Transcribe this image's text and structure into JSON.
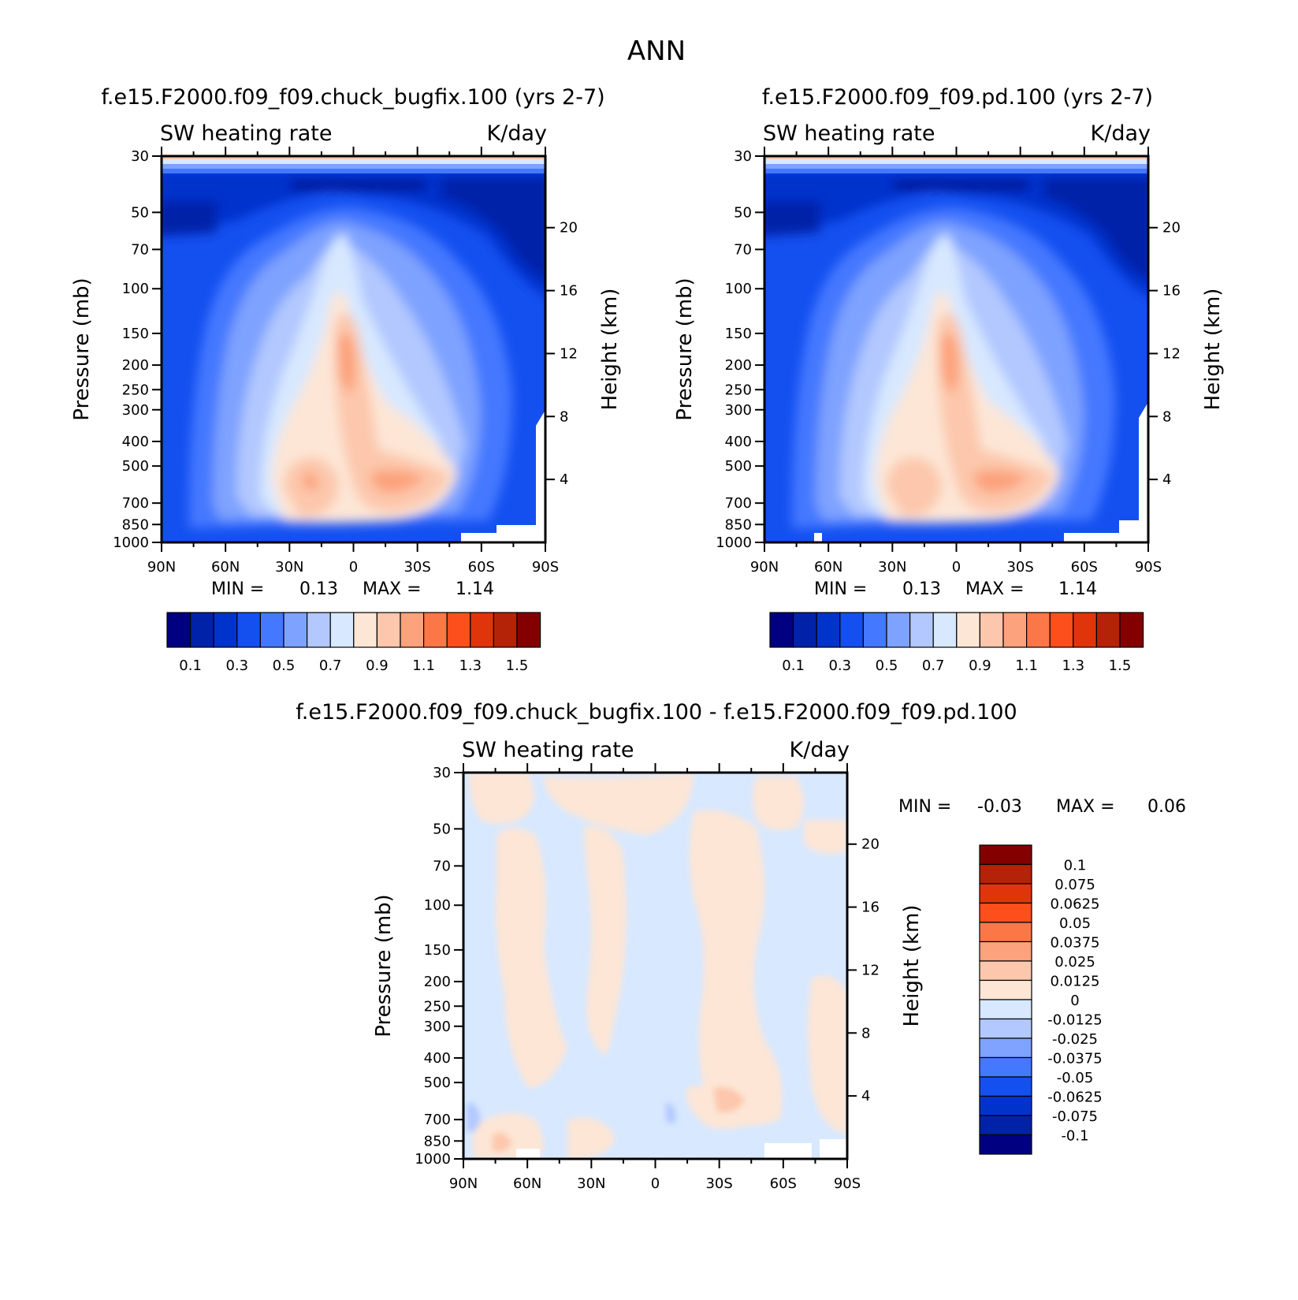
{
  "title": "ANN",
  "chart_data": [
    {
      "type": "heatmap",
      "name": "test",
      "title": "f.e15.F2000.f09_f09.chuck_bugfix.100 (yrs 2-7)",
      "variable": "SW heating rate",
      "units": "K/day",
      "ylabel": "Pressure (mb)",
      "ylabel2": "Height (km)",
      "x_ticks": [
        "90N",
        "60N",
        "30N",
        "0",
        "30S",
        "60S",
        "90S"
      ],
      "y_ticks": [
        "30",
        "50",
        "70",
        "100",
        "150",
        "200",
        "250",
        "300",
        "400",
        "500",
        "700",
        "850",
        "1000"
      ],
      "y2_ticks": [
        "20",
        "16",
        "12",
        "8",
        "4"
      ],
      "min_label": "MIN =",
      "min": "0.13",
      "max_label": "MAX =",
      "max": "1.14",
      "colorbar_levels": [
        0.1,
        0.2,
        0.3,
        0.4,
        0.5,
        0.6,
        0.7,
        0.8,
        0.9,
        1.0,
        1.1,
        1.2,
        1.3,
        1.4,
        1.5
      ],
      "colorbar_labels": [
        "0.1",
        "0.3",
        "0.5",
        "0.7",
        "0.9",
        "1.1",
        "1.3",
        "1.5"
      ]
    },
    {
      "type": "heatmap",
      "name": "control",
      "title": "f.e15.F2000.f09_f09.pd.100 (yrs 2-7)",
      "variable": "SW heating rate",
      "units": "K/day",
      "ylabel": "Pressure (mb)",
      "ylabel2": "Height (km)",
      "x_ticks": [
        "90N",
        "60N",
        "30N",
        "0",
        "30S",
        "60S",
        "90S"
      ],
      "y_ticks": [
        "30",
        "50",
        "70",
        "100",
        "150",
        "200",
        "250",
        "300",
        "400",
        "500",
        "700",
        "850",
        "1000"
      ],
      "y2_ticks": [
        "20",
        "16",
        "12",
        "8",
        "4"
      ],
      "min_label": "MIN =",
      "min": "0.13",
      "max_label": "MAX =",
      "max": "1.14",
      "colorbar_levels": [
        0.1,
        0.2,
        0.3,
        0.4,
        0.5,
        0.6,
        0.7,
        0.8,
        0.9,
        1.0,
        1.1,
        1.2,
        1.3,
        1.4,
        1.5
      ],
      "colorbar_labels": [
        "0.1",
        "0.3",
        "0.5",
        "0.7",
        "0.9",
        "1.1",
        "1.3",
        "1.5"
      ]
    },
    {
      "type": "heatmap",
      "name": "difference",
      "title": "f.e15.F2000.f09_f09.chuck_bugfix.100 - f.e15.F2000.f09_f09.pd.100",
      "variable": "SW heating rate",
      "units": "K/day",
      "ylabel": "Pressure (mb)",
      "ylabel2": "Height (km)",
      "x_ticks": [
        "90N",
        "60N",
        "30N",
        "0",
        "30S",
        "60S",
        "90S"
      ],
      "y_ticks": [
        "30",
        "50",
        "70",
        "100",
        "150",
        "200",
        "250",
        "300",
        "400",
        "500",
        "700",
        "850",
        "1000"
      ],
      "y2_ticks": [
        "20",
        "16",
        "12",
        "8",
        "4"
      ],
      "min_label": "MIN =",
      "min": "-0.03",
      "max_label": "MAX =",
      "max": "0.06",
      "colorbar_labels": [
        "0.1",
        "0.075",
        "0.0625",
        "0.05",
        "0.0375",
        "0.025",
        "0.0125",
        "0",
        "-0.0125",
        "-0.025",
        "-0.0375",
        "-0.05",
        "-0.0625",
        "-0.075",
        "-0.1"
      ]
    }
  ],
  "colors": {
    "palette": [
      "#000080",
      "#0022a8",
      "#0033cc",
      "#1450f0",
      "#4478ff",
      "#7ea2ff",
      "#b2c8ff",
      "#d7e8ff",
      "#fde6d6",
      "#fcc7ac",
      "#fca27c",
      "#fc7748",
      "#fc4f1c",
      "#e0350a",
      "#b42208",
      "#840000"
    ]
  }
}
